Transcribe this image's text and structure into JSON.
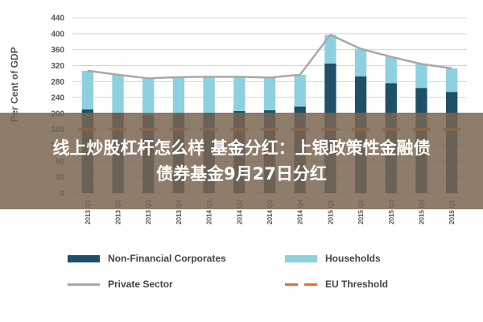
{
  "chart_data": {
    "type": "bar",
    "title": "",
    "ylabel": "Per Cent of GDP",
    "ylim": [
      0,
      440
    ],
    "yticks": [
      0,
      40,
      80,
      120,
      160,
      200,
      240,
      280,
      320,
      360,
      400,
      440
    ],
    "grid": true,
    "legend_position": "bottom",
    "categories": [
      "2013 Q1",
      "2013 Q2",
      "2013 Q3",
      "2013 Q4",
      "2014 Q1",
      "2014 Q2",
      "2014 Q3",
      "2014 Q4",
      "2015 Q1",
      "2015 Q2",
      "2015 Q3",
      "2015 Q4",
      "2016 Q1"
    ],
    "stacked": true,
    "series": [
      {
        "name": "Non-Financial Corporates",
        "kind": "bar",
        "color": "#1f5068",
        "values": [
          210,
          202,
          197,
          200,
          202,
          206,
          208,
          217,
          325,
          293,
          276,
          264,
          254
        ]
      },
      {
        "name": "Households",
        "kind": "bar",
        "color": "#8dd0e0",
        "values": [
          97,
          95,
          91,
          91,
          90,
          86,
          82,
          80,
          72,
          69,
          66,
          60,
          59
        ]
      },
      {
        "name": "Private Sector",
        "kind": "line",
        "color": "#a8a8a8",
        "values": [
          307,
          297,
          288,
          291,
          292,
          292,
          290,
          297,
          397,
          362,
          342,
          324,
          313
        ]
      },
      {
        "name": "EU Threshold",
        "kind": "dashed-line",
        "color": "#e8702a",
        "values": [
          160,
          160,
          160,
          160,
          160,
          160,
          160,
          160,
          160,
          160,
          160,
          160,
          160
        ]
      }
    ]
  },
  "overlay": {
    "line1": "线上炒股杠杆怎么样 基金分红：上银政策性金融债",
    "line2": "债券基金9月27日分红",
    "background": "#7a6450"
  }
}
